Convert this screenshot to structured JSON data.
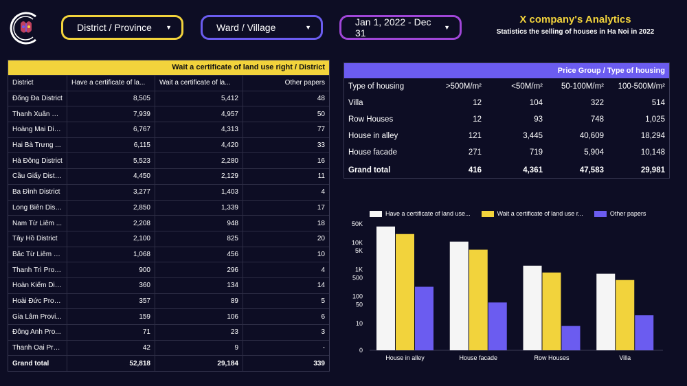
{
  "filters": [
    {
      "label": "District / Province"
    },
    {
      "label": "Ward / Village"
    },
    {
      "label": "Jan 1, 2022 - Dec 31"
    }
  ],
  "brand": {
    "title": "X company's Analytics",
    "subtitle": "Statistics the selling of houses in Ha Noi in 2022"
  },
  "district_table": {
    "band_title": "Wait a certificate of land use right / District",
    "columns": [
      "District",
      "Have a certificate of la...",
      "Wait a certificate of la...",
      "Other papers"
    ],
    "rows": [
      [
        "Đống Đa District",
        "8,505",
        "5,412",
        "48"
      ],
      [
        "Thanh Xuân Di...",
        "7,939",
        "4,957",
        "50"
      ],
      [
        "Hoàng Mai Dis...",
        "6,767",
        "4,313",
        "77"
      ],
      [
        "Hai Bà Trưng ...",
        "6,115",
        "4,420",
        "33"
      ],
      [
        "Hà Đông District",
        "5,523",
        "2,280",
        "16"
      ],
      [
        "Cầu Giấy Distri...",
        "4,450",
        "2,129",
        "11"
      ],
      [
        "Ba Đình District",
        "3,277",
        "1,403",
        "4"
      ],
      [
        "Long Biên Dist...",
        "2,850",
        "1,339",
        "17"
      ],
      [
        "Nam Từ Liêm ...",
        "2,208",
        "948",
        "18"
      ],
      [
        "Tây Hồ District",
        "2,100",
        "825",
        "20"
      ],
      [
        "Bắc Từ Liêm Di...",
        "1,068",
        "456",
        "10"
      ],
      [
        "Thanh Trì Prov...",
        "900",
        "296",
        "4"
      ],
      [
        "Hoàn Kiếm Dis...",
        "360",
        "134",
        "14"
      ],
      [
        "Hoài Đức Provi...",
        "357",
        "89",
        "5"
      ],
      [
        "Gia Lâm Provi...",
        "159",
        "106",
        "6"
      ],
      [
        "Đông Anh Pro...",
        "71",
        "23",
        "3"
      ],
      [
        "Thanh Oai Pro...",
        "42",
        "9",
        "-"
      ]
    ],
    "total": [
      "Grand total",
      "52,818",
      "29,184",
      "339"
    ]
  },
  "price_table": {
    "band_title": "Price Group / Type of housing",
    "columns": [
      "Type of housing",
      ">500M/m²",
      "<50M/m²",
      "50-100M/m²",
      "100-500M/m²"
    ],
    "rows": [
      [
        "Villa",
        "12",
        "104",
        "322",
        "514"
      ],
      [
        "Row Houses",
        "12",
        "93",
        "748",
        "1,025"
      ],
      [
        "House in alley",
        "121",
        "3,445",
        "40,609",
        "18,294"
      ],
      [
        "House facade",
        "271",
        "719",
        "5,904",
        "10,148"
      ]
    ],
    "total": [
      "Grand total",
      "416",
      "4,361",
      "47,583",
      "29,981"
    ]
  },
  "colors": {
    "accent_yellow": "#f2d33c",
    "accent_purple": "#6b5cf0",
    "accent_violet": "#a046d8",
    "background": "#0d0d24"
  },
  "chart_data": {
    "type": "bar",
    "scale": "log",
    "categories": [
      "House in alley",
      "House facade",
      "Row Houses",
      "Villa"
    ],
    "series": [
      {
        "name": "Have a certificate of land use...",
        "color": "#f5f5f5",
        "values": [
          40000,
          11000,
          1400,
          700
        ]
      },
      {
        "name": "Wait a certificate of land use r...",
        "color": "#f2d33c",
        "values": [
          21000,
          5500,
          780,
          410
        ]
      },
      {
        "name": "Other papers",
        "color": "#6b5cf0",
        "values": [
          230,
          60,
          8,
          20
        ]
      }
    ],
    "yticks": [
      {
        "value": 1,
        "label": "0"
      },
      {
        "value": 10,
        "label": "10"
      },
      {
        "value": 50,
        "label": "50"
      },
      {
        "value": 100,
        "label": "100"
      },
      {
        "value": 500,
        "label": "500"
      },
      {
        "value": 1000,
        "label": "1K"
      },
      {
        "value": 5000,
        "label": "5K"
      },
      {
        "value": 10000,
        "label": "10K"
      },
      {
        "value": 50000,
        "label": "50K"
      }
    ],
    "ylim": [
      1,
      50000
    ],
    "legend": "top"
  }
}
